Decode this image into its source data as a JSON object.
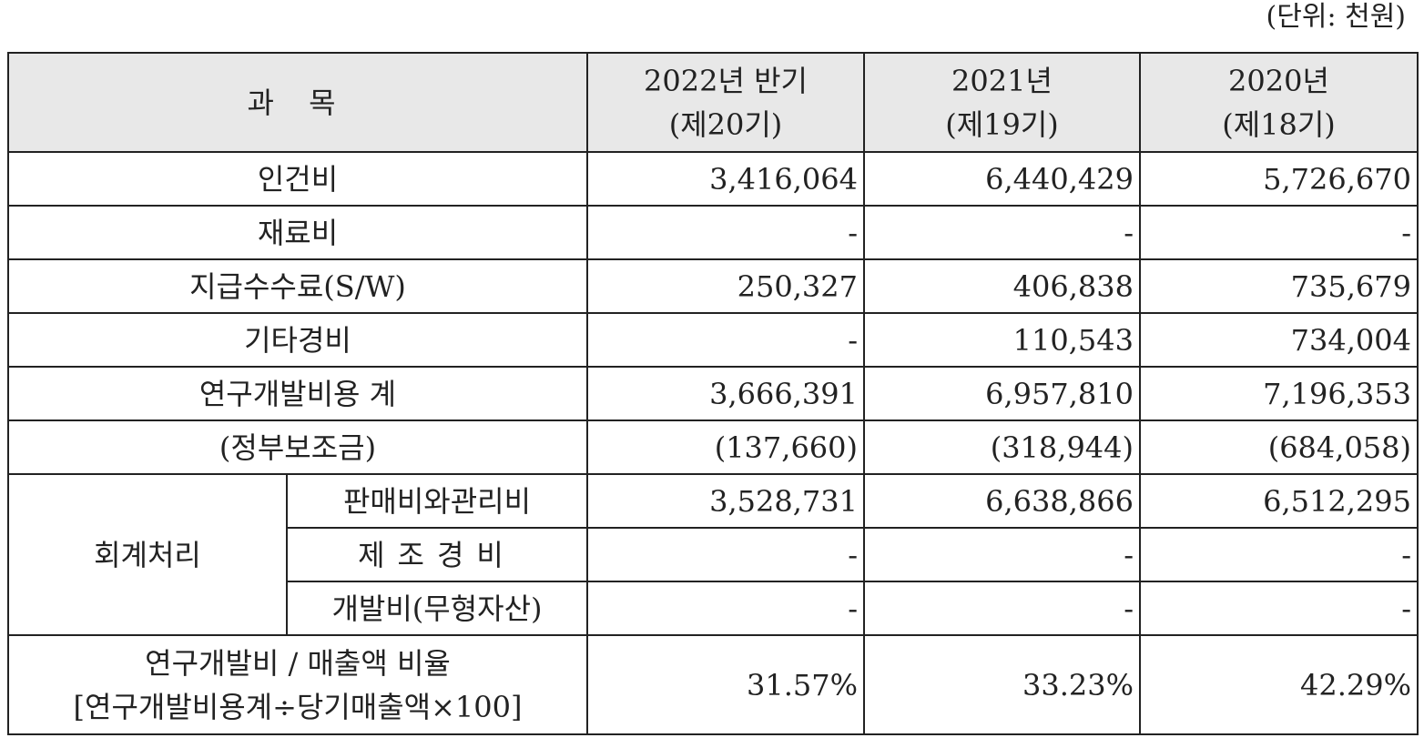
{
  "unit_label": "(단위: 천원)",
  "header": {
    "subject": "과  목",
    "col1_line1": "2022년 반기",
    "col1_line2": "(제20기)",
    "col2_line1": "2021년",
    "col2_line2": "(제19기)",
    "col3_line1": "2020년",
    "col3_line2": "(제18기)"
  },
  "rows": [
    {
      "label": "인건비",
      "values": [
        "3,416,064",
        "6,440,429",
        "5,726,670"
      ]
    },
    {
      "label": "재료비",
      "values": [
        "-",
        "-",
        "-"
      ]
    },
    {
      "label": "지급수수료(S/W)",
      "values": [
        "250,327",
        "406,838",
        "735,679"
      ]
    },
    {
      "label": "기타경비",
      "values": [
        "-",
        "110,543",
        "734,004"
      ]
    },
    {
      "label": "연구개발비용 계",
      "values": [
        "3,666,391",
        "6,957,810",
        "7,196,353"
      ]
    },
    {
      "label": "(정부보조금)",
      "values": [
        "(137,660)",
        "(318,944)",
        "(684,058)"
      ]
    }
  ],
  "accounting": {
    "group_label": "회계처리",
    "rows": [
      {
        "label": "판매비와관리비",
        "values": [
          "3,528,731",
          "6,638,866",
          "6,512,295"
        ]
      },
      {
        "label": "제조경비",
        "values": [
          "-",
          "-",
          "-"
        ]
      },
      {
        "label": "개발비(무형자산)",
        "values": [
          "-",
          "-",
          "-"
        ]
      }
    ]
  },
  "ratio": {
    "label_line1": "연구개발비 / 매출액 비율",
    "label_line2": "[연구개발비용계÷당기매출액×100]",
    "values": [
      "31.57%",
      "33.23%",
      "42.29%"
    ]
  }
}
